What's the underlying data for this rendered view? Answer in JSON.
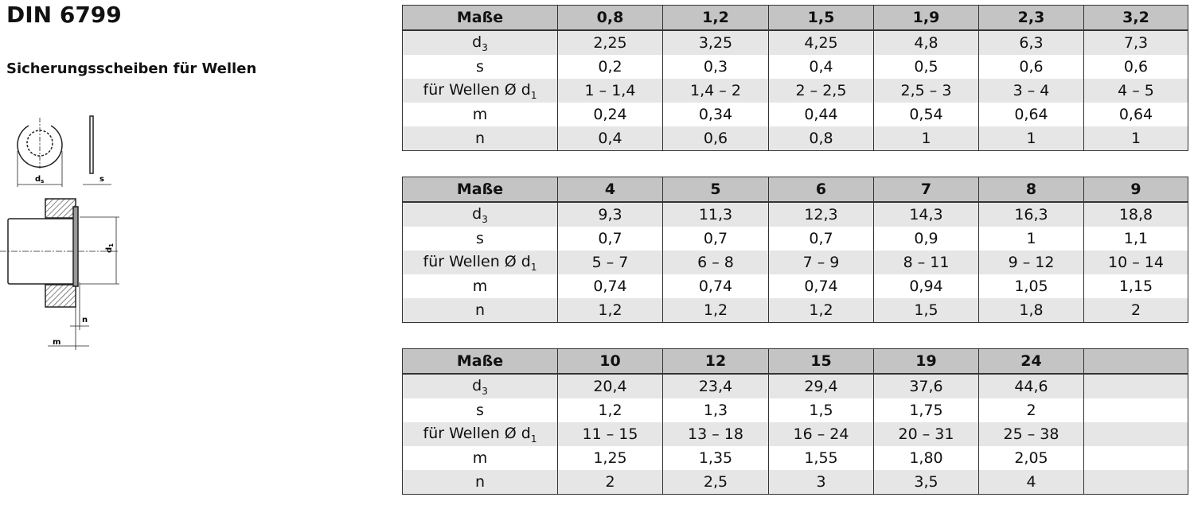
{
  "title": "DIN 6799",
  "subtitle": "Sicherungsscheiben für Wellen",
  "drawing": {
    "labels": [
      {
        "text": "d",
        "sub": "s"
      },
      {
        "text": "s"
      },
      {
        "text": "d",
        "sub": "1"
      },
      {
        "text": "n"
      },
      {
        "text": "m"
      }
    ]
  },
  "tables": [
    {
      "header": {
        "label": "Maße",
        "values": [
          "0,8",
          "1,2",
          "1,5",
          "1,9",
          "2,3",
          "3,2"
        ]
      },
      "rows": [
        {
          "label": {
            "text": "d",
            "sub": "3"
          },
          "values": [
            "2,25",
            "3,25",
            "4,25",
            "4,8",
            "6,3",
            "7,3"
          ]
        },
        {
          "label": {
            "text": "s"
          },
          "values": [
            "0,2",
            "0,3",
            "0,4",
            "0,5",
            "0,6",
            "0,6"
          ]
        },
        {
          "label": {
            "text": "für Wellen Ø d",
            "sub": "1"
          },
          "values": [
            "1 – 1,4",
            "1,4 – 2",
            "2 – 2,5",
            "2,5 – 3",
            "3 – 4",
            "4 – 5"
          ]
        },
        {
          "label": {
            "text": "m"
          },
          "values": [
            "0,24",
            "0,34",
            "0,44",
            "0,54",
            "0,64",
            "0,64"
          ]
        },
        {
          "label": {
            "text": "n"
          },
          "values": [
            "0,4",
            "0,6",
            "0,8",
            "1",
            "1",
            "1"
          ]
        }
      ]
    },
    {
      "header": {
        "label": "Maße",
        "values": [
          "4",
          "5",
          "6",
          "7",
          "8",
          "9"
        ]
      },
      "rows": [
        {
          "label": {
            "text": "d",
            "sub": "3"
          },
          "values": [
            "9,3",
            "11,3",
            "12,3",
            "14,3",
            "16,3",
            "18,8"
          ]
        },
        {
          "label": {
            "text": "s"
          },
          "values": [
            "0,7",
            "0,7",
            "0,7",
            "0,9",
            "1",
            "1,1"
          ]
        },
        {
          "label": {
            "text": "für Wellen Ø d",
            "sub": "1"
          },
          "values": [
            "5 – 7",
            "6 – 8",
            "7 – 9",
            "8 – 11",
            "9 – 12",
            "10 – 14"
          ]
        },
        {
          "label": {
            "text": "m"
          },
          "values": [
            "0,74",
            "0,74",
            "0,74",
            "0,94",
            "1,05",
            "1,15"
          ]
        },
        {
          "label": {
            "text": "n"
          },
          "values": [
            "1,2",
            "1,2",
            "1,2",
            "1,5",
            "1,8",
            "2"
          ]
        }
      ]
    },
    {
      "header": {
        "label": "Maße",
        "values": [
          "10",
          "12",
          "15",
          "19",
          "24"
        ]
      },
      "rows": [
        {
          "label": {
            "text": "d",
            "sub": "3"
          },
          "values": [
            "20,4",
            "23,4",
            "29,4",
            "37,6",
            "44,6"
          ]
        },
        {
          "label": {
            "text": "s"
          },
          "values": [
            "1,2",
            "1,3",
            "1,5",
            "1,75",
            "2"
          ]
        },
        {
          "label": {
            "text": "für Wellen Ø d",
            "sub": "1"
          },
          "values": [
            "11 – 15",
            "13 – 18",
            "16 – 24",
            "20 – 31",
            "25 – 38"
          ]
        },
        {
          "label": {
            "text": "m"
          },
          "values": [
            "1,25",
            "1,35",
            "1,55",
            "1,80",
            "2,05"
          ]
        },
        {
          "label": {
            "text": "n"
          },
          "values": [
            "2",
            "2,5",
            "3",
            "3,5",
            "4"
          ]
        }
      ]
    }
  ]
}
